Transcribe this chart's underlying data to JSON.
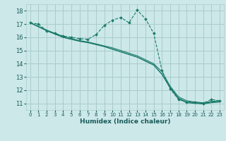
{
  "title": "",
  "xlabel": "Humidex (Indice chaleur)",
  "bg_color": "#cce8e8",
  "grid_color": "#aacccc",
  "line_color": "#1a7a6a",
  "xlim": [
    -0.5,
    23.5
  ],
  "ylim": [
    10.5,
    18.5
  ],
  "xticks": [
    0,
    1,
    2,
    3,
    4,
    5,
    6,
    7,
    8,
    9,
    10,
    11,
    12,
    13,
    14,
    15,
    16,
    17,
    18,
    19,
    20,
    21,
    22,
    23
  ],
  "yticks": [
    11,
    12,
    13,
    14,
    15,
    16,
    17,
    18
  ],
  "series": [
    {
      "x": [
        0,
        1,
        2,
        3,
        4,
        5,
        6,
        7,
        8,
        9,
        10,
        11,
        12,
        13,
        14,
        15,
        16,
        17,
        18,
        19,
        20,
        21,
        22,
        23
      ],
      "y": [
        17.1,
        17.0,
        16.5,
        16.3,
        16.1,
        16.0,
        15.9,
        15.85,
        16.2,
        16.9,
        17.3,
        17.5,
        17.1,
        18.05,
        17.4,
        16.3,
        13.5,
        12.1,
        11.3,
        11.1,
        11.1,
        11.0,
        11.3,
        11.2
      ],
      "marker": "D",
      "linestyle": "--"
    },
    {
      "x": [
        0,
        2,
        3,
        4,
        5,
        6,
        7,
        8,
        9,
        10,
        11,
        12,
        13,
        14,
        15,
        16,
        17,
        18,
        19,
        20,
        21,
        22,
        23
      ],
      "y": [
        17.1,
        16.5,
        16.25,
        16.0,
        15.85,
        15.7,
        15.6,
        15.45,
        15.3,
        15.1,
        14.9,
        14.7,
        14.5,
        14.2,
        13.9,
        13.2,
        12.2,
        11.4,
        11.1,
        11.05,
        11.0,
        11.1,
        11.15
      ],
      "linestyle": "-"
    },
    {
      "x": [
        0,
        2,
        3,
        4,
        5,
        6,
        7,
        8,
        9,
        10,
        11,
        12,
        13,
        14,
        15,
        16,
        17,
        18,
        19,
        20,
        21,
        22,
        23
      ],
      "y": [
        17.1,
        16.55,
        16.3,
        16.05,
        15.9,
        15.75,
        15.65,
        15.5,
        15.35,
        15.2,
        15.0,
        14.8,
        14.6,
        14.3,
        14.0,
        13.4,
        12.3,
        11.5,
        11.2,
        11.1,
        11.05,
        11.15,
        11.2
      ],
      "linestyle": "-"
    },
    {
      "x": [
        0,
        2,
        3,
        4,
        5,
        6,
        7,
        8,
        9,
        10,
        11,
        12,
        13,
        14,
        15,
        16,
        17,
        18,
        19,
        20,
        21,
        22,
        23
      ],
      "y": [
        17.1,
        16.5,
        16.25,
        16.0,
        15.85,
        15.7,
        15.6,
        15.45,
        15.3,
        15.1,
        14.9,
        14.7,
        14.5,
        14.2,
        13.9,
        13.2,
        12.15,
        11.35,
        11.05,
        11.0,
        10.95,
        11.05,
        11.1
      ],
      "linestyle": "-"
    }
  ]
}
